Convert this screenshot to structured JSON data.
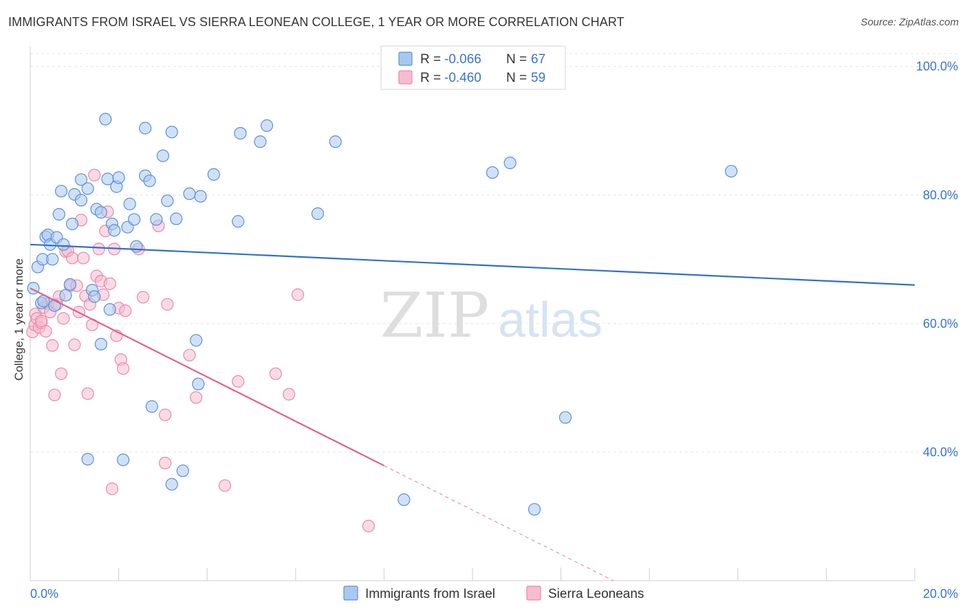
{
  "header": {
    "title": "IMMIGRANTS FROM ISRAEL VS SIERRA LEONEAN COLLEGE, 1 YEAR OR MORE CORRELATION CHART",
    "source": "Source: ZipAtlas.com"
  },
  "watermark": {
    "part1": "ZIP",
    "part2": "atlas"
  },
  "colors": {
    "blue_fill": "#a9c8f0",
    "blue_stroke": "#5b8fd6",
    "blue_line": "#2f6fcb",
    "pink_fill": "#f6bcd0",
    "pink_stroke": "#e58aa8",
    "pink_line": "#e0608a",
    "axis_text": "#3a74c9",
    "grid": "#e3e3e3"
  },
  "legend_top": [
    {
      "r_label": "R = ",
      "r_value": "-0.066",
      "n_label": "N = ",
      "n_value": "67",
      "color": "blue"
    },
    {
      "r_label": "R = ",
      "r_value": "-0.460",
      "n_label": "N = ",
      "n_value": "59",
      "color": "pink"
    }
  ],
  "chart_data": {
    "type": "scatter",
    "title": "IMMIGRANTS FROM ISRAEL VS SIERRA LEONEAN COLLEGE, 1 YEAR OR MORE CORRELATION CHART",
    "xlabel": "",
    "ylabel": "College, 1 year or more",
    "xlim": [
      0,
      20
    ],
    "ylim": [
      20,
      102
    ],
    "x_tick_labels": [
      "0.0%",
      "20.0%"
    ],
    "y_ticks": [
      40,
      60,
      80,
      100
    ],
    "y_tick_labels": [
      "40.0%",
      "60.0%",
      "80.0%",
      "100.0%"
    ],
    "grid": true,
    "legend_position": "bottom",
    "series": [
      {
        "name": "Immigrants from Israel",
        "color": "blue",
        "R": -0.066,
        "N": 67,
        "trend": {
          "x0": 0,
          "y0": 72.3,
          "x1": 20,
          "y1": 66.0,
          "dashed_from": null
        },
        "points": [
          [
            0.07,
            65.5
          ],
          [
            0.17,
            68.8
          ],
          [
            0.25,
            63.2
          ],
          [
            0.28,
            70.0
          ],
          [
            0.35,
            73.5
          ],
          [
            0.4,
            73.8
          ],
          [
            0.45,
            72.3
          ],
          [
            0.5,
            70.0
          ],
          [
            0.6,
            73.4
          ],
          [
            0.65,
            77.0
          ],
          [
            0.75,
            72.3
          ],
          [
            0.8,
            64.4
          ],
          [
            0.7,
            80.6
          ],
          [
            0.9,
            66.1
          ],
          [
            0.95,
            75.5
          ],
          [
            1.0,
            80.1
          ],
          [
            1.15,
            79.2
          ],
          [
            1.15,
            82.4
          ],
          [
            1.3,
            81.0
          ],
          [
            1.4,
            65.2
          ],
          [
            1.45,
            64.2
          ],
          [
            1.5,
            77.8
          ],
          [
            1.6,
            77.3
          ],
          [
            1.6,
            56.8
          ],
          [
            1.7,
            91.8
          ],
          [
            1.75,
            82.5
          ],
          [
            1.8,
            62.2
          ],
          [
            1.85,
            75.5
          ],
          [
            1.9,
            74.5
          ],
          [
            1.95,
            81.3
          ],
          [
            2.0,
            82.7
          ],
          [
            2.2,
            75.0
          ],
          [
            2.25,
            78.6
          ],
          [
            2.35,
            76.2
          ],
          [
            2.4,
            72.0
          ],
          [
            2.6,
            90.4
          ],
          [
            2.6,
            83.0
          ],
          [
            2.7,
            82.2
          ],
          [
            2.75,
            47.1
          ],
          [
            2.85,
            76.2
          ],
          [
            3.0,
            86.1
          ],
          [
            3.1,
            79.1
          ],
          [
            3.2,
            89.8
          ],
          [
            3.3,
            76.3
          ],
          [
            3.6,
            80.2
          ],
          [
            3.75,
            57.4
          ],
          [
            3.8,
            50.6
          ],
          [
            3.85,
            79.8
          ],
          [
            4.15,
            83.2
          ],
          [
            4.7,
            75.9
          ],
          [
            4.75,
            89.6
          ],
          [
            5.2,
            88.3
          ],
          [
            5.35,
            90.8
          ],
          [
            6.5,
            77.1
          ],
          [
            6.9,
            88.3
          ],
          [
            8.45,
            32.6
          ],
          [
            10.45,
            83.5
          ],
          [
            10.85,
            85.0
          ],
          [
            11.4,
            31.1
          ],
          [
            12.1,
            45.4
          ],
          [
            15.85,
            83.7
          ],
          [
            1.3,
            38.9
          ],
          [
            2.1,
            38.8
          ],
          [
            3.2,
            35.0
          ],
          [
            3.45,
            37.1
          ],
          [
            0.3,
            63.5
          ],
          [
            0.55,
            62.8
          ]
        ]
      },
      {
        "name": "Sierra Leoneans",
        "color": "pink",
        "R": -0.46,
        "N": 59,
        "trend": {
          "x0": 0,
          "y0": 65.5,
          "x1": 20,
          "y1": -3.5,
          "dashed_from": 8.0
        },
        "points": [
          [
            0.05,
            58.7
          ],
          [
            0.1,
            59.8
          ],
          [
            0.12,
            61.5
          ],
          [
            0.15,
            60.8
          ],
          [
            0.2,
            59.4
          ],
          [
            0.25,
            60.1
          ],
          [
            0.3,
            62.5
          ],
          [
            0.35,
            58.8
          ],
          [
            0.4,
            63.1
          ],
          [
            0.45,
            61.8
          ],
          [
            0.5,
            56.6
          ],
          [
            0.55,
            48.9
          ],
          [
            0.6,
            63.0
          ],
          [
            0.65,
            64.2
          ],
          [
            0.7,
            52.2
          ],
          [
            0.75,
            60.8
          ],
          [
            0.8,
            71.2
          ],
          [
            0.85,
            71.3
          ],
          [
            0.9,
            65.9
          ],
          [
            0.95,
            70.2
          ],
          [
            1.0,
            56.7
          ],
          [
            1.05,
            65.9
          ],
          [
            1.1,
            61.8
          ],
          [
            1.15,
            76.1
          ],
          [
            1.2,
            70.2
          ],
          [
            1.25,
            64.3
          ],
          [
            1.3,
            49.1
          ],
          [
            1.35,
            63.0
          ],
          [
            1.4,
            59.8
          ],
          [
            1.45,
            83.1
          ],
          [
            1.5,
            67.4
          ],
          [
            1.55,
            71.6
          ],
          [
            1.6,
            66.6
          ],
          [
            1.65,
            64.5
          ],
          [
            1.7,
            74.4
          ],
          [
            1.75,
            77.4
          ],
          [
            1.8,
            66.2
          ],
          [
            1.85,
            34.3
          ],
          [
            1.9,
            71.6
          ],
          [
            1.95,
            58.1
          ],
          [
            2.0,
            62.4
          ],
          [
            2.05,
            54.4
          ],
          [
            2.1,
            53.0
          ],
          [
            2.15,
            62.0
          ],
          [
            2.45,
            71.6
          ],
          [
            2.55,
            64.1
          ],
          [
            2.9,
            75.2
          ],
          [
            3.05,
            38.3
          ],
          [
            3.05,
            45.8
          ],
          [
            3.1,
            63.0
          ],
          [
            3.6,
            55.1
          ],
          [
            3.75,
            48.5
          ],
          [
            4.4,
            34.8
          ],
          [
            4.7,
            51.0
          ],
          [
            5.55,
            52.2
          ],
          [
            5.85,
            49.0
          ],
          [
            6.05,
            64.5
          ],
          [
            7.65,
            28.5
          ],
          [
            0.25,
            60.4
          ]
        ]
      }
    ]
  },
  "legend_bottom": {
    "items": [
      {
        "label": "Immigrants from Israel",
        "color": "blue"
      },
      {
        "label": "Sierra Leoneans",
        "color": "pink"
      }
    ]
  }
}
